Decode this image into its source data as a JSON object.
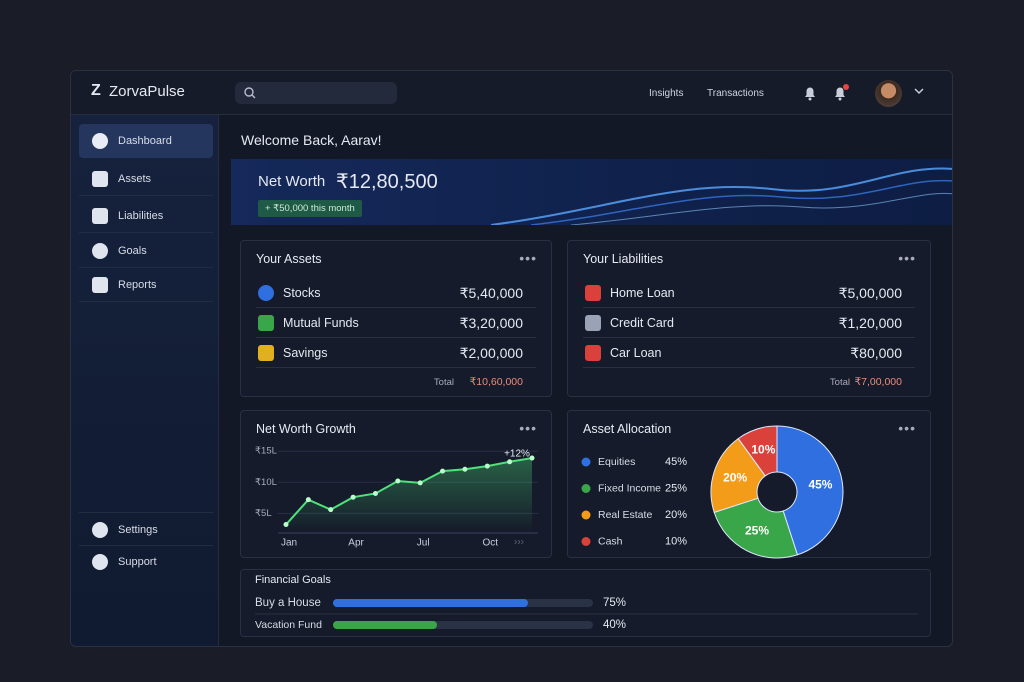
{
  "brand": "ZorvaPulse",
  "topnav": [
    "Insights",
    "Transactions"
  ],
  "sidebar": {
    "items": [
      "Dashboard",
      "Assets",
      "Liabilities",
      "Goals",
      "Reports"
    ],
    "bottom": [
      "Settings",
      "Support"
    ]
  },
  "welcome": "Welcome Back, Aarav!",
  "net_worth": {
    "label": "Net Worth",
    "value": "₹12,80,500",
    "change": "+ ₹50,000 this month"
  },
  "assets": {
    "title": "Your Assets",
    "rows": [
      {
        "name": "Stocks",
        "amount": "₹5,40,000"
      },
      {
        "name": "Mutual Funds",
        "amount": "₹3,20,000"
      },
      {
        "name": "Savings",
        "amount": "₹2,00,000"
      }
    ],
    "total_label": "Total",
    "total": "₹10,60,000"
  },
  "liabilities": {
    "title": "Your Liabilities",
    "rows": [
      {
        "name": "Home Loan",
        "amount": "₹5,00,000"
      },
      {
        "name": "Credit Card",
        "amount": "₹1,20,000"
      },
      {
        "name": "Car Loan",
        "amount": "₹80,000"
      }
    ],
    "total_label": "Total",
    "total": "₹7,00,000"
  },
  "growth": {
    "title": "Net Worth Growth",
    "chart_data": {
      "type": "line",
      "categories": [
        "Jan",
        null,
        null,
        "Apr",
        null,
        null,
        "Jul",
        null,
        null,
        "Oct",
        null,
        null
      ],
      "values": [
        3.2,
        7.2,
        5.6,
        7.6,
        8.2,
        10.2,
        9.9,
        11.8,
        12.1,
        12.6,
        13.3,
        13.9
      ],
      "color": "#4ee37a",
      "ylim": [
        2,
        16
      ],
      "yticks": [
        {
          "value": 5,
          "label": "₹5L"
        },
        {
          "value": 10,
          "label": "₹10L"
        },
        {
          "value": 15,
          "label": "₹15L"
        }
      ],
      "annotation": "+12%",
      "grid": true
    }
  },
  "allocation": {
    "title": "Asset Allocation",
    "chart_data": {
      "type": "pie",
      "categories": [
        "Equities",
        "Fixed Income",
        "Real Estate",
        "Cash"
      ],
      "values": [
        45,
        25,
        20,
        10
      ],
      "value_labels": [
        "45%",
        "25%",
        "20%",
        "10%"
      ],
      "colors": [
        "#2f6fe0",
        "#3aa64a",
        "#f39c1a",
        "#d9413a"
      ]
    }
  },
  "goals": {
    "title": "Financial Goals",
    "rows": [
      {
        "name": "Buy a House",
        "value": 75,
        "value_label": "75%",
        "color": "#2f6fe0"
      },
      {
        "name": "Vacation Fund",
        "value": 40,
        "value_label": "40%",
        "color": "#3aa64a"
      }
    ]
  }
}
